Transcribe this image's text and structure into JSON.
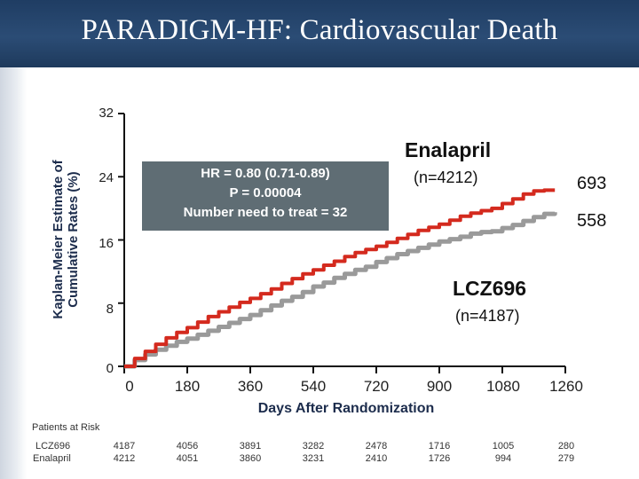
{
  "header": {
    "title": "PARADIGM-HF: Cardiovascular Death"
  },
  "colors": {
    "enalapril": "#d42a1e",
    "lcz696": "#9a9a9a",
    "header": "#2b4c75",
    "box": "#5f6d74"
  },
  "chart_data": {
    "type": "line",
    "title": "PARADIGM-HF: Cardiovascular Death",
    "xlabel": "Days After Randomization",
    "ylabel": "Kaplan-Meier Estimate of Cumulative Rates (%)",
    "ylabel_lines": [
      "Kaplan-Meier Estimate of",
      "Cumulative Rates (%)"
    ],
    "xlim": [
      0,
      1260
    ],
    "ylim": [
      0,
      32
    ],
    "x_ticks": [
      "0",
      "180",
      "360",
      "540",
      "720",
      "900",
      "1080",
      "1260"
    ],
    "y_ticks": [
      "0",
      "8",
      "16",
      "24",
      "32"
    ],
    "series": [
      {
        "name": "Enalapril",
        "n_label": "(n=4212)",
        "end_label": "693",
        "color": "#d42a1e",
        "x": [
          0,
          30,
          60,
          90,
          120,
          150,
          180,
          210,
          240,
          270,
          300,
          330,
          360,
          390,
          420,
          450,
          480,
          510,
          540,
          570,
          600,
          630,
          660,
          690,
          720,
          750,
          780,
          810,
          840,
          870,
          900,
          930,
          960,
          990,
          1020,
          1050,
          1080,
          1110,
          1140,
          1170,
          1200,
          1230
        ],
        "y": [
          0.0,
          1.0,
          1.9,
          2.8,
          3.6,
          4.3,
          4.9,
          5.6,
          6.3,
          6.9,
          7.5,
          8.1,
          8.6,
          9.2,
          9.8,
          10.5,
          11.1,
          11.7,
          12.2,
          12.8,
          13.3,
          13.9,
          14.4,
          14.8,
          15.2,
          15.7,
          16.2,
          16.7,
          17.2,
          17.6,
          18.0,
          18.5,
          19.0,
          19.4,
          19.7,
          20.0,
          20.6,
          21.2,
          21.8,
          22.2,
          22.3,
          22.3
        ]
      },
      {
        "name": "LCZ696",
        "n_label": "(n=4187)",
        "end_label": "558",
        "color": "#9a9a9a",
        "x": [
          0,
          30,
          60,
          90,
          120,
          150,
          180,
          210,
          240,
          270,
          300,
          330,
          360,
          390,
          420,
          450,
          480,
          510,
          540,
          570,
          600,
          630,
          660,
          690,
          720,
          750,
          780,
          810,
          840,
          870,
          900,
          930,
          960,
          990,
          1020,
          1050,
          1080,
          1110,
          1140,
          1170,
          1200,
          1230
        ],
        "y": [
          0.0,
          0.8,
          1.5,
          2.1,
          2.6,
          3.1,
          3.5,
          4.0,
          4.5,
          5.0,
          5.5,
          6.0,
          6.5,
          7.1,
          7.7,
          8.3,
          8.8,
          9.4,
          10.1,
          10.6,
          11.2,
          11.7,
          12.2,
          12.6,
          13.2,
          13.7,
          14.2,
          14.6,
          15.0,
          15.4,
          15.8,
          16.1,
          16.4,
          16.8,
          17.0,
          17.1,
          17.5,
          17.9,
          18.4,
          18.9,
          19.3,
          19.5
        ]
      }
    ],
    "annotations": {
      "hr_lines": [
        "HR = 0.80 (0.71-0.89)",
        "P = 0.00004",
        "Number need to treat = 32"
      ]
    },
    "risk_table": {
      "title": "Patients at Risk",
      "rows": [
        {
          "label": "LCZ696",
          "values": [
            "4187",
            "4056",
            "3891",
            "3282",
            "2478",
            "1716",
            "1005",
            "280"
          ]
        },
        {
          "label": "Enalapril",
          "values": [
            "4212",
            "4051",
            "3860",
            "3231",
            "2410",
            "1726",
            "994",
            "279"
          ]
        }
      ]
    }
  }
}
